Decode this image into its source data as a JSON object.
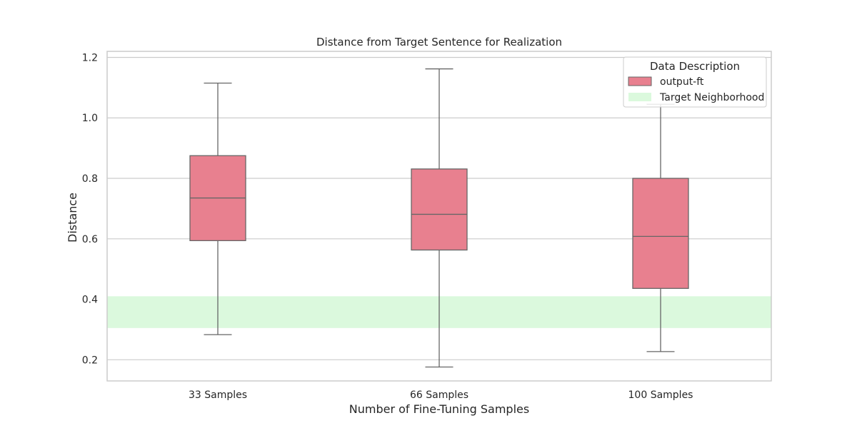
{
  "chart_data": {
    "type": "box",
    "title": "Distance from Target Sentence for Realization",
    "xlabel": "Number of Fine-Tuning Samples",
    "ylabel": "Distance",
    "ylim": [
      0.13,
      1.22
    ],
    "yticks": [
      0.2,
      0.4,
      0.6,
      0.8,
      1.0,
      1.2
    ],
    "ytick_labels": [
      "0.2",
      "0.4",
      "0.6",
      "0.8",
      "1.0",
      "1.2"
    ],
    "categories": [
      "33 Samples",
      "66 Samples",
      "100 Samples"
    ],
    "series": [
      {
        "name": "output-ft",
        "color": "#e8808f",
        "boxes": [
          {
            "whisker_low": 0.283,
            "q1": 0.594,
            "median": 0.735,
            "q3": 0.875,
            "whisker_high": 1.115
          },
          {
            "whisker_low": 0.176,
            "q1": 0.563,
            "median": 0.681,
            "q3": 0.831,
            "whisker_high": 1.162
          },
          {
            "whisker_low": 0.227,
            "q1": 0.436,
            "median": 0.608,
            "q3": 0.8,
            "whisker_high": 1.045
          }
        ]
      }
    ],
    "band": {
      "name": "Target Neighborhood",
      "low": 0.305,
      "high": 0.41,
      "color": "#dbf9dd"
    },
    "legend": {
      "title": "Data Description",
      "placement": "top-right"
    },
    "grid": true
  }
}
